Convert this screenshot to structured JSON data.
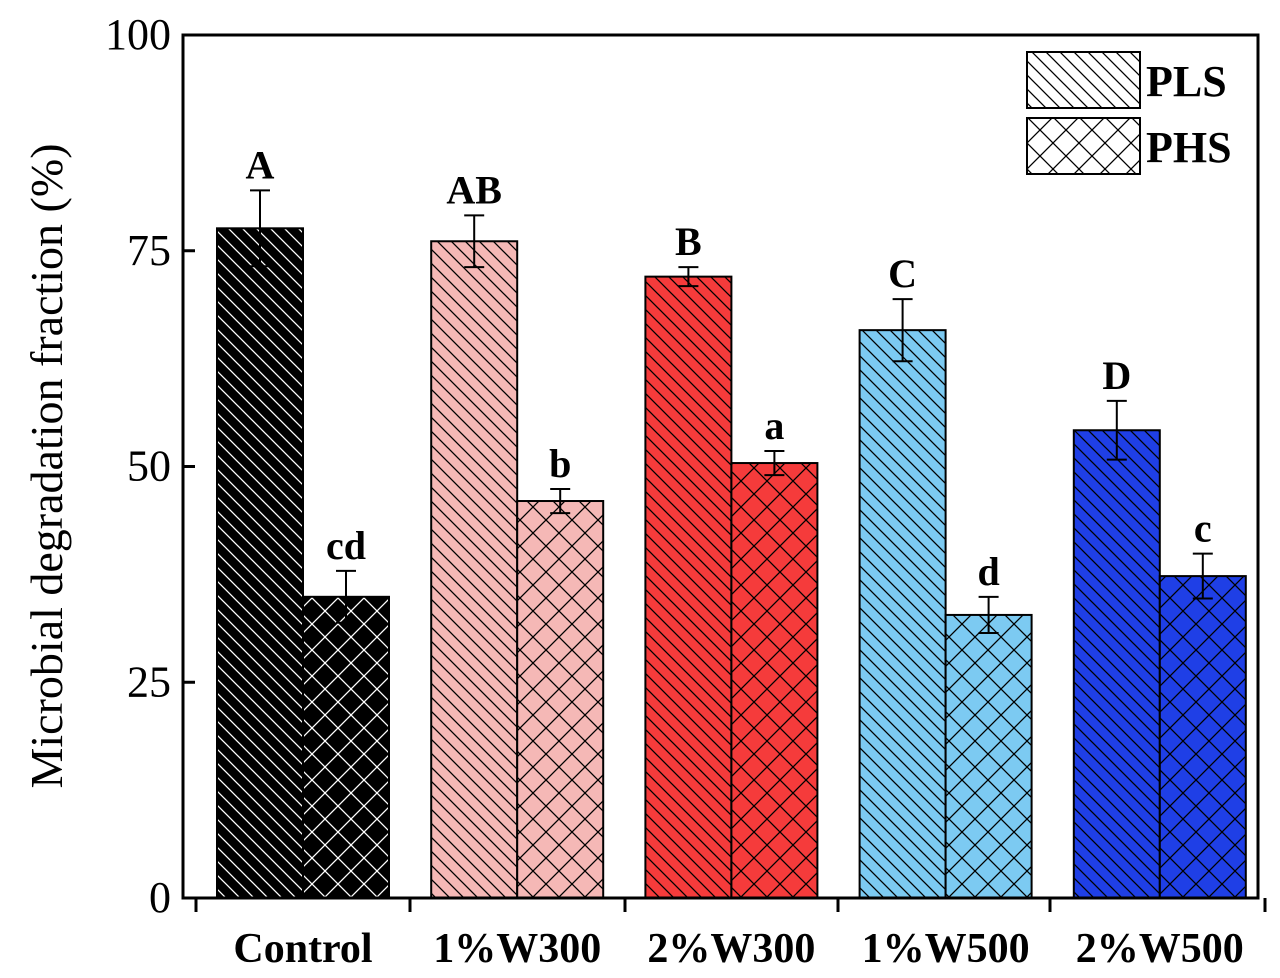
{
  "chart_data": {
    "type": "bar",
    "title": "",
    "xlabel": "",
    "ylabel": "Microbial degradation fraction (%)",
    "ylim": [
      0,
      100
    ],
    "yticks": [
      0,
      25,
      50,
      75,
      100
    ],
    "categories": [
      "Control",
      "1%W300",
      "2%W300",
      "1%W500",
      "2%W500"
    ],
    "category_colors": [
      "#000000",
      "#f5b8b6",
      "#f53b3b",
      "#7ccaf2",
      "#1f3fe6"
    ],
    "series": [
      {
        "name": "PLS",
        "pattern": "diagonal",
        "values": [
          77.6,
          76.1,
          72.0,
          65.8,
          54.2
        ],
        "errors": [
          4.4,
          3.0,
          1.1,
          3.6,
          3.4
        ],
        "labels": [
          "A",
          "AB",
          "B",
          "C",
          "D"
        ]
      },
      {
        "name": "PHS",
        "pattern": "crosshatch",
        "values": [
          34.9,
          46.0,
          50.4,
          32.8,
          37.3
        ],
        "errors": [
          3.0,
          1.4,
          1.4,
          2.1,
          2.6
        ],
        "labels": [
          "cd",
          "b",
          "a",
          "d",
          "c"
        ]
      }
    ],
    "legend": {
      "placement": "top-right",
      "entries": [
        "PLS",
        "PHS"
      ]
    },
    "grid": false
  }
}
